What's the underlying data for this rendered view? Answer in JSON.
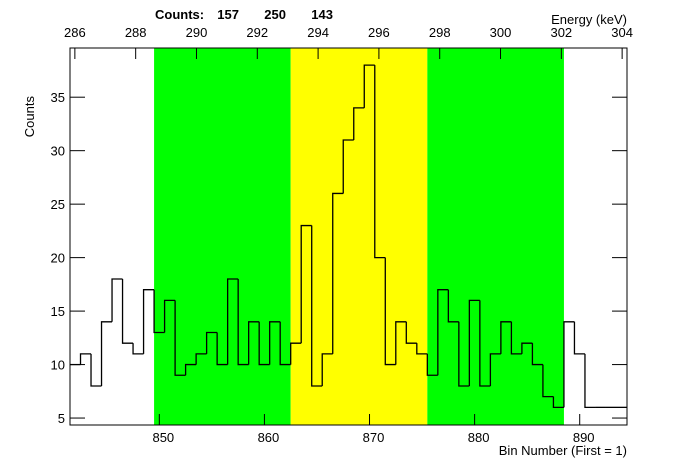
{
  "chart_data": {
    "type": "histogram",
    "counts_label": "Counts:",
    "region_counts": [
      157,
      250,
      143
    ],
    "x_label": "Bin Number (First = 1)",
    "y_label": "Counts",
    "x2_label": "Energy (keV)",
    "bins": [
      841.5,
      842.5,
      843.5,
      844.5,
      845.5,
      846.5,
      847.5,
      848.5,
      849.5,
      850.5,
      851.5,
      852.5,
      853.5,
      854.5,
      855.5,
      856.5,
      857.5,
      858.5,
      859.5,
      860.5,
      861.5,
      862.5,
      863.5,
      864.5,
      865.5,
      866.5,
      867.5,
      868.5,
      869.5,
      870.5,
      871.5,
      872.5,
      873.5,
      874.5,
      875.5,
      876.5,
      877.5,
      878.5,
      879.5,
      880.5,
      881.5,
      882.5,
      883.5,
      884.5,
      885.5,
      886.5,
      887.5,
      888.5,
      889.5,
      890.5,
      891.5,
      892.5,
      893.5,
      894.5
    ],
    "values": [
      10,
      11,
      8,
      14,
      18,
      12,
      11,
      17,
      13,
      16,
      9,
      10,
      11,
      13,
      10,
      18,
      10,
      14,
      10,
      14,
      10,
      12,
      23,
      8,
      11,
      26,
      31,
      34,
      38,
      20,
      10,
      14,
      12,
      11,
      9,
      17,
      14,
      8,
      16,
      8,
      11,
      14,
      11,
      12,
      10,
      7,
      6,
      14,
      11,
      6,
      6,
      6,
      6
    ],
    "color": "#000000",
    "regions": [
      {
        "from": 849.5,
        "to": 862.5,
        "color": "#00ff00"
      },
      {
        "from": 862.5,
        "to": 875.5,
        "color": "#ffff00"
      },
      {
        "from": 875.5,
        "to": 888.5,
        "color": "#00ff00"
      }
    ],
    "xlim": [
      841.5,
      894.5
    ],
    "xticks": [
      850,
      860,
      870,
      880,
      890
    ],
    "ylim": [
      4.35,
      39.6
    ],
    "yticks": [
      5,
      10,
      15,
      20,
      25,
      30,
      35
    ],
    "x2lim": [
      285.84,
      304.16
    ],
    "x2ticks": [
      286,
      288,
      290,
      292,
      294,
      296,
      298,
      300,
      302,
      304
    ]
  }
}
